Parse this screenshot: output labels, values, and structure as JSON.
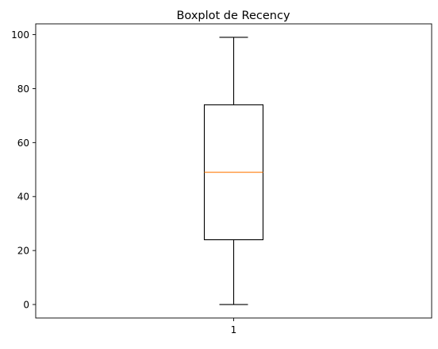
{
  "chart_data": {
    "type": "boxplot",
    "title": "Boxplot de Recency",
    "xlabel": "",
    "ylabel": "",
    "categories": [
      "1"
    ],
    "series": [
      {
        "whisker_low": 0,
        "q1": 24,
        "median": 49,
        "q3": 74,
        "whisker_high": 99
      }
    ],
    "ylim": [
      -5,
      104
    ],
    "y_ticks": [
      0,
      20,
      40,
      60,
      80,
      100
    ],
    "grid": false,
    "colors": {
      "box": "#000000",
      "median": "#ff7f0e",
      "whisker": "#000000"
    }
  }
}
